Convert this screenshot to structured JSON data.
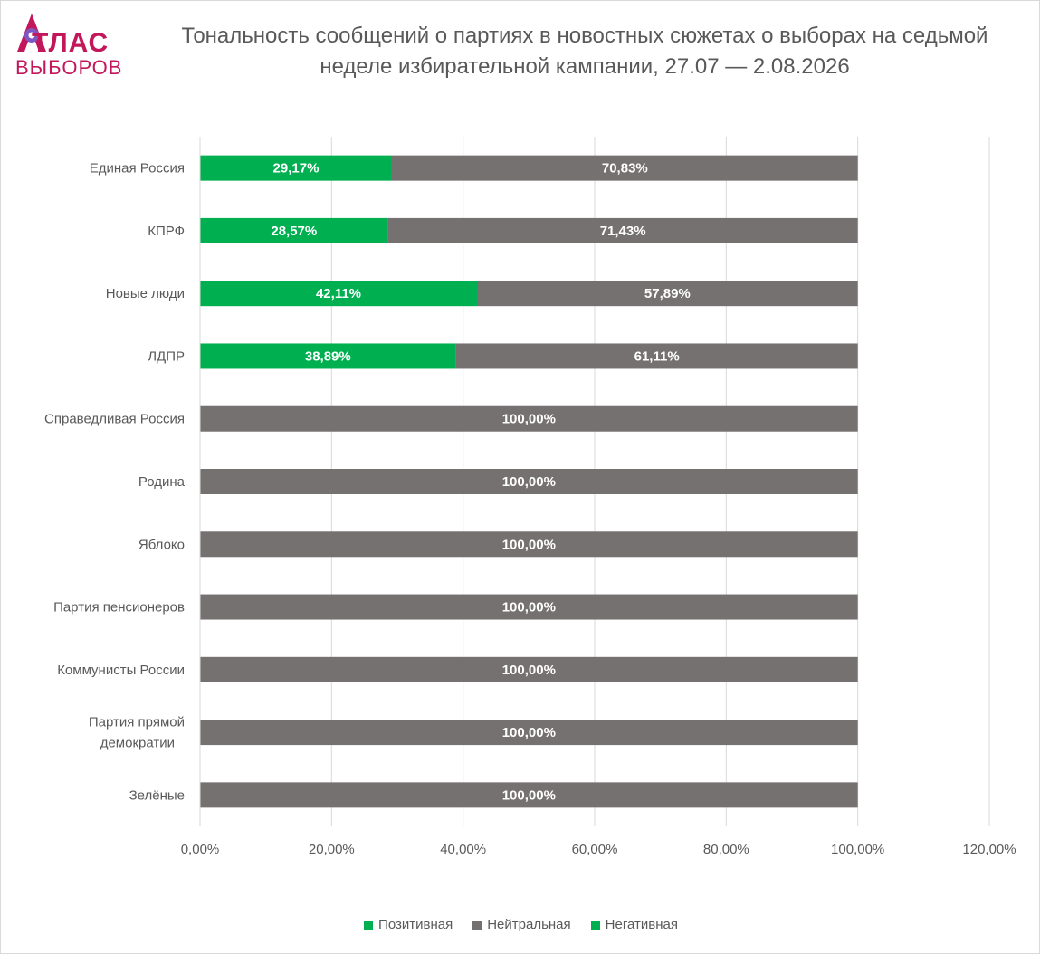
{
  "logo": {
    "line1": "ТЛАС",
    "line2": "ВЫБОРОВ",
    "color": "#c2185b",
    "accent": "#7e57c2"
  },
  "chart_data": {
    "type": "bar",
    "orientation": "horizontal",
    "stacked": true,
    "title": "Тональность сообщений о партиях в новостных сюжетах о выборах на седьмой неделе избирательной кампании, 27.07 — 2.08.2026",
    "categories": [
      "Единая Россия",
      "КПРФ",
      "Новые люди",
      "ЛДПР",
      "Справедливая Россия",
      "Родина",
      "Яблоко",
      "Партия пенсионеров",
      "Коммунисты России",
      "Партия прямой демократии",
      "Зелёные"
    ],
    "series": [
      {
        "name": "Позитивная",
        "color": "#00b050",
        "values": [
          29.17,
          28.57,
          42.11,
          38.89,
          0,
          0,
          0,
          0,
          0,
          0,
          0
        ],
        "labels": [
          "29,17%",
          "28,57%",
          "42,11%",
          "38,89%",
          "",
          "",
          "",
          "",
          "",
          "",
          ""
        ]
      },
      {
        "name": "Нейтральная",
        "color": "#767171",
        "values": [
          70.83,
          71.43,
          57.89,
          61.11,
          100,
          100,
          100,
          100,
          100,
          100,
          100
        ],
        "labels": [
          "70,83%",
          "71,43%",
          "57,89%",
          "61,11%",
          "100,00%",
          "100,00%",
          "100,00%",
          "100,00%",
          "100,00%",
          "100,00%",
          "100,00%"
        ]
      },
      {
        "name": "Негативная",
        "color": "#00b050",
        "values": [
          0,
          0,
          0,
          0,
          0,
          0,
          0,
          0,
          0,
          0,
          0
        ],
        "labels": [
          "",
          "",
          "",
          "",
          "",
          "",
          "",
          "",
          "",
          "",
          ""
        ]
      }
    ],
    "xlim": [
      0,
      120
    ],
    "xticks": [
      "0,00%",
      "20,00%",
      "40,00%",
      "60,00%",
      "80,00%",
      "100,00%",
      "120,00%"
    ],
    "grid": "vertical",
    "legend_position": "bottom"
  }
}
